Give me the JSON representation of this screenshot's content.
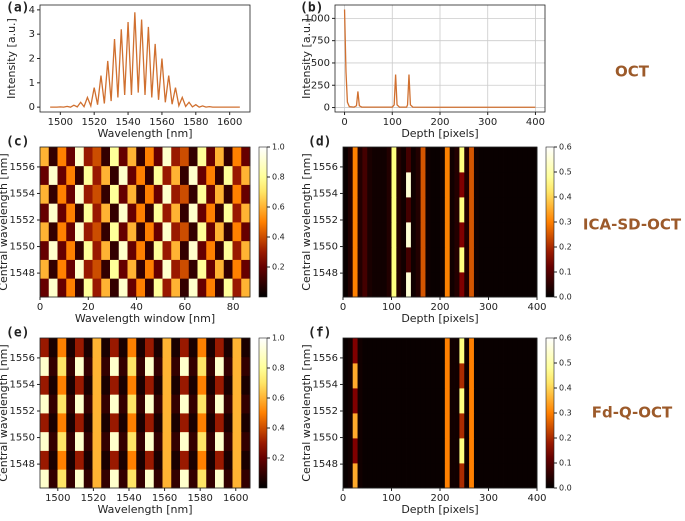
{
  "row_labels": [
    "OCT",
    "ICA-SD-OCT",
    "Fd-Q-OCT"
  ],
  "chart_data": [
    {
      "type": "line",
      "label": "(a)",
      "xlabel": "Wavelength [nm]",
      "ylabel": "Intensity [a.u.]",
      "color": "#d07030",
      "x": [
        1494,
        1496,
        1498,
        1500,
        1502,
        1504,
        1506,
        1508,
        1510,
        1512,
        1514,
        1516,
        1518,
        1520,
        1522,
        1524,
        1526,
        1528,
        1530,
        1532,
        1534,
        1536,
        1538,
        1540,
        1542,
        1544,
        1546,
        1548,
        1550,
        1552,
        1554,
        1556,
        1558,
        1560,
        1562,
        1564,
        1566,
        1568,
        1570,
        1572,
        1574,
        1576,
        1578,
        1580,
        1582,
        1584,
        1586,
        1588,
        1590,
        1592,
        1594,
        1596,
        1598,
        1600,
        1602,
        1604,
        1606
      ],
      "values": [
        0,
        0,
        0,
        0.01,
        0,
        0.03,
        0,
        0.08,
        0.01,
        0.2,
        0.02,
        0.4,
        0.05,
        0.8,
        0.1,
        1.3,
        0.15,
        1.9,
        0.25,
        2.8,
        0.4,
        3.2,
        0.5,
        3.5,
        0.5,
        3.9,
        0.6,
        3.6,
        0.5,
        3.3,
        0.4,
        2.6,
        0.3,
        2.0,
        0.2,
        1.3,
        0.12,
        0.8,
        0.06,
        0.4,
        0.03,
        0.2,
        0.01,
        0.1,
        0,
        0.05,
        0,
        0.02,
        0,
        0,
        0,
        0,
        0,
        0,
        0,
        0,
        0
      ],
      "xlim": [
        1488,
        1612
      ],
      "xticks": [
        1500,
        1520,
        1540,
        1560,
        1580,
        1600
      ],
      "ylim": [
        -0.2,
        4.2
      ],
      "yticks": [
        0,
        1,
        2,
        3,
        4
      ],
      "grid": false
    },
    {
      "type": "line",
      "label": "(b)",
      "xlabel": "Depth [pixels]",
      "ylabel": "Intensity [a.u.]",
      "color": "#d07030",
      "x": [
        0,
        3,
        6,
        10,
        20,
        25,
        28,
        31,
        36,
        100,
        104,
        107,
        110,
        115,
        130,
        132,
        135,
        138,
        143,
        200,
        300,
        400
      ],
      "values": [
        1100,
        400,
        60,
        10,
        5,
        20,
        180,
        20,
        5,
        5,
        30,
        370,
        30,
        5,
        5,
        30,
        370,
        30,
        5,
        3,
        3,
        3
      ],
      "xlim": [
        -20,
        420
      ],
      "xticks": [
        0,
        100,
        200,
        300,
        400
      ],
      "ylim": [
        -50,
        1150
      ],
      "yticks": [
        0,
        250,
        500,
        750,
        1000
      ],
      "grid": true
    },
    {
      "type": "heatmap",
      "label": "(c)",
      "xlabel": "Wavelength window [nm]",
      "ylabel": "Central wavelength [nm]",
      "colormap": "afmhot",
      "xlim": [
        0,
        87
      ],
      "xticks": [
        0,
        20,
        40,
        60,
        80
      ],
      "ylim": [
        1546.2,
        1557.5
      ],
      "yticks": [
        1548,
        1550,
        1552,
        1554,
        1556
      ],
      "clim": [
        0,
        1
      ],
      "cticks": [
        0.2,
        0.4,
        0.6,
        0.8,
        {
          "value": 1,
          "label": "1.0"
        }
      ],
      "z": [
        [
          0.2,
          0.9,
          0.2,
          0.5,
          0.1,
          0.8,
          0.3,
          0.6,
          0.1,
          0.9,
          0.2,
          0.5,
          0.1,
          0.8,
          0.3,
          0.6,
          0.1,
          0.9,
          0.2,
          0.5,
          0.1,
          0.8,
          0.3,
          0.6
        ],
        [
          0.6,
          0.1,
          0.5,
          0.2,
          0.9,
          0.3,
          0.4,
          0.1,
          0.8,
          0.2,
          0.6,
          0.1,
          0.5,
          0.2,
          0.9,
          0.3,
          0.4,
          0.1,
          0.8,
          0.2,
          0.6,
          0.1,
          0.5,
          0.2
        ],
        [
          0.2,
          0.9,
          0.2,
          0.5,
          0.1,
          0.8,
          0.3,
          0.6,
          0.1,
          0.9,
          0.2,
          0.5,
          0.1,
          0.8,
          0.3,
          0.6,
          0.1,
          0.9,
          0.2,
          0.5,
          0.1,
          0.8,
          0.3,
          0.6
        ],
        [
          0.6,
          0.1,
          0.5,
          0.2,
          0.9,
          0.3,
          0.4,
          0.1,
          0.8,
          0.2,
          0.6,
          0.1,
          0.5,
          0.2,
          0.9,
          0.3,
          0.4,
          0.1,
          0.8,
          0.2,
          0.6,
          0.1,
          0.5,
          0.2
        ],
        [
          0.2,
          0.9,
          0.2,
          0.5,
          0.1,
          0.8,
          0.3,
          0.6,
          0.1,
          0.9,
          0.2,
          0.5,
          0.1,
          0.8,
          0.3,
          0.6,
          0.1,
          0.9,
          0.2,
          0.5,
          0.1,
          0.8,
          0.3,
          0.6
        ],
        [
          0.6,
          0.1,
          0.5,
          0.2,
          0.9,
          0.3,
          0.4,
          0.1,
          0.8,
          0.2,
          0.6,
          0.1,
          0.5,
          0.2,
          0.9,
          0.3,
          0.4,
          0.1,
          0.8,
          0.2,
          0.6,
          0.1,
          0.5,
          0.2
        ],
        [
          0.2,
          0.9,
          0.2,
          0.5,
          0.1,
          0.8,
          0.3,
          0.6,
          0.1,
          0.9,
          0.2,
          0.5,
          0.1,
          0.8,
          0.3,
          0.6,
          0.1,
          0.9,
          0.2,
          0.5,
          0.1,
          0.8,
          0.3,
          0.6
        ],
        [
          0.6,
          0.1,
          0.5,
          0.2,
          0.9,
          0.3,
          0.4,
          0.1,
          0.8,
          0.2,
          0.6,
          0.1,
          0.5,
          0.2,
          0.9,
          0.3,
          0.4,
          0.1,
          0.8,
          0.2,
          0.6,
          0.1,
          0.5,
          0.2
        ]
      ]
    },
    {
      "type": "heatmap",
      "label": "(d)",
      "xlabel": "Depth [pixels]",
      "ylabel": "Central wavelength [nm]",
      "colormap": "afmhot",
      "xlim": [
        0,
        400
      ],
      "xticks": [
        0,
        100,
        200,
        300,
        400
      ],
      "ylim": [
        1546.2,
        1557.5
      ],
      "yticks": [
        1548,
        1550,
        1552,
        1554,
        1556
      ],
      "clim": [
        0,
        0.6
      ],
      "cticks": [
        {
          "value": 0,
          "label": "0.0"
        },
        0.1,
        0.2,
        0.3,
        0.4,
        0.5,
        0.6
      ],
      "z": [
        [
          0.01,
          0.04,
          0.3,
          0.04,
          0.08,
          0.03,
          0.02,
          0.02,
          0.02,
          0.04,
          0.45,
          0.04,
          0.02,
          0.55,
          0.02,
          0.04,
          0.25,
          0.02,
          0.01,
          0.01,
          0.02,
          0.3,
          0.02,
          0.04,
          0.15,
          0.04,
          0.25,
          0.02,
          0.01,
          0.01,
          0.01,
          0.01,
          0.01,
          0.01,
          0.01,
          0.01,
          0.01,
          0.01,
          0.01,
          0.01
        ],
        [
          0.01,
          0.04,
          0.3,
          0.04,
          0.08,
          0.03,
          0.02,
          0.02,
          0.02,
          0.04,
          0.45,
          0.04,
          0.02,
          0.08,
          0.02,
          0.04,
          0.25,
          0.02,
          0.01,
          0.01,
          0.02,
          0.3,
          0.02,
          0.04,
          0.45,
          0.04,
          0.25,
          0.02,
          0.01,
          0.01,
          0.01,
          0.01,
          0.01,
          0.01,
          0.01,
          0.01,
          0.01,
          0.01,
          0.01,
          0.01
        ],
        [
          0.01,
          0.04,
          0.3,
          0.04,
          0.08,
          0.03,
          0.02,
          0.02,
          0.02,
          0.04,
          0.45,
          0.04,
          0.02,
          0.55,
          0.02,
          0.04,
          0.25,
          0.02,
          0.01,
          0.01,
          0.02,
          0.3,
          0.02,
          0.04,
          0.15,
          0.04,
          0.25,
          0.02,
          0.01,
          0.01,
          0.01,
          0.01,
          0.01,
          0.01,
          0.01,
          0.01,
          0.01,
          0.01,
          0.01,
          0.01
        ],
        [
          0.01,
          0.04,
          0.3,
          0.04,
          0.08,
          0.03,
          0.02,
          0.02,
          0.02,
          0.04,
          0.45,
          0.04,
          0.02,
          0.08,
          0.02,
          0.04,
          0.25,
          0.02,
          0.01,
          0.01,
          0.02,
          0.3,
          0.02,
          0.04,
          0.45,
          0.04,
          0.25,
          0.02,
          0.01,
          0.01,
          0.01,
          0.01,
          0.01,
          0.01,
          0.01,
          0.01,
          0.01,
          0.01,
          0.01,
          0.01
        ],
        [
          0.01,
          0.04,
          0.3,
          0.04,
          0.08,
          0.03,
          0.02,
          0.02,
          0.02,
          0.04,
          0.45,
          0.04,
          0.02,
          0.55,
          0.02,
          0.04,
          0.25,
          0.02,
          0.01,
          0.01,
          0.02,
          0.3,
          0.02,
          0.04,
          0.15,
          0.04,
          0.25,
          0.02,
          0.01,
          0.01,
          0.01,
          0.01,
          0.01,
          0.01,
          0.01,
          0.01,
          0.01,
          0.01,
          0.01,
          0.01
        ],
        [
          0.01,
          0.04,
          0.3,
          0.04,
          0.08,
          0.03,
          0.02,
          0.02,
          0.02,
          0.04,
          0.45,
          0.04,
          0.02,
          0.08,
          0.02,
          0.04,
          0.25,
          0.02,
          0.01,
          0.01,
          0.02,
          0.3,
          0.02,
          0.04,
          0.45,
          0.04,
          0.25,
          0.02,
          0.01,
          0.01,
          0.01,
          0.01,
          0.01,
          0.01,
          0.01,
          0.01,
          0.01,
          0.01,
          0.01,
          0.01
        ]
      ]
    },
    {
      "type": "heatmap",
      "label": "(e)",
      "xlabel": "Wavelength [nm]",
      "ylabel": "Central wavelength [nm]",
      "colormap": "afmhot",
      "xlim": [
        1490,
        1608
      ],
      "xticks": [
        1500,
        1520,
        1540,
        1560,
        1580,
        1600
      ],
      "ylim": [
        1546.2,
        1557.5
      ],
      "yticks": [
        1548,
        1550,
        1552,
        1554,
        1556
      ],
      "clim": [
        0,
        1
      ],
      "cticks": [
        0.2,
        0.4,
        0.6,
        0.8,
        {
          "value": 1,
          "label": "1.0"
        }
      ],
      "z": [
        [
          0.9,
          0.1,
          0.7,
          0.1,
          0.9,
          0.1,
          0.6,
          0.1,
          0.9,
          0.1,
          0.7,
          0.1,
          0.9,
          0.1,
          0.6,
          0.1,
          0.9,
          0.1,
          0.7,
          0.1,
          0.9,
          0.1,
          0.6,
          0.1
        ],
        [
          0.3,
          0.05,
          0.5,
          0.05,
          0.3,
          0.05,
          0.6,
          0.05,
          0.3,
          0.05,
          0.5,
          0.05,
          0.3,
          0.05,
          0.6,
          0.05,
          0.3,
          0.05,
          0.5,
          0.05,
          0.3,
          0.05,
          0.6,
          0.05
        ],
        [
          0.9,
          0.1,
          0.7,
          0.1,
          0.9,
          0.1,
          0.6,
          0.1,
          0.9,
          0.1,
          0.7,
          0.1,
          0.9,
          0.1,
          0.6,
          0.1,
          0.9,
          0.1,
          0.7,
          0.1,
          0.9,
          0.1,
          0.6,
          0.1
        ],
        [
          0.3,
          0.05,
          0.5,
          0.05,
          0.3,
          0.05,
          0.6,
          0.05,
          0.3,
          0.05,
          0.5,
          0.05,
          0.3,
          0.05,
          0.6,
          0.05,
          0.3,
          0.05,
          0.5,
          0.05,
          0.3,
          0.05,
          0.6,
          0.05
        ],
        [
          0.9,
          0.1,
          0.7,
          0.1,
          0.9,
          0.1,
          0.6,
          0.1,
          0.9,
          0.1,
          0.7,
          0.1,
          0.9,
          0.1,
          0.6,
          0.1,
          0.9,
          0.1,
          0.7,
          0.1,
          0.9,
          0.1,
          0.6,
          0.1
        ],
        [
          0.3,
          0.05,
          0.5,
          0.05,
          0.3,
          0.05,
          0.6,
          0.05,
          0.3,
          0.05,
          0.5,
          0.05,
          0.3,
          0.05,
          0.6,
          0.05,
          0.3,
          0.05,
          0.5,
          0.05,
          0.3,
          0.05,
          0.6,
          0.05
        ],
        [
          0.9,
          0.1,
          0.7,
          0.1,
          0.9,
          0.1,
          0.6,
          0.1,
          0.9,
          0.1,
          0.7,
          0.1,
          0.9,
          0.1,
          0.6,
          0.1,
          0.9,
          0.1,
          0.7,
          0.1,
          0.9,
          0.1,
          0.6,
          0.1
        ],
        [
          0.3,
          0.05,
          0.5,
          0.05,
          0.3,
          0.05,
          0.6,
          0.05,
          0.3,
          0.05,
          0.5,
          0.05,
          0.3,
          0.05,
          0.6,
          0.05,
          0.3,
          0.05,
          0.5,
          0.05,
          0.3,
          0.05,
          0.6,
          0.05
        ]
      ]
    },
    {
      "type": "heatmap",
      "label": "(f)",
      "xlabel": "Depth [pixels]",
      "ylabel": "Central wavelength [nm]",
      "colormap": "afmhot",
      "xlim": [
        0,
        400
      ],
      "xticks": [
        0,
        100,
        200,
        300,
        400
      ],
      "ylim": [
        1546.2,
        1557.5
      ],
      "yticks": [
        1548,
        1550,
        1552,
        1554,
        1556
      ],
      "clim": [
        0,
        0.6
      ],
      "cticks": [
        {
          "value": 0,
          "label": "0.0"
        },
        0.1,
        0.2,
        0.3,
        0.4,
        0.5,
        0.6
      ],
      "z": [
        [
          0.01,
          0.02,
          0.35,
          0.02,
          0.01,
          0.01,
          0.01,
          0.01,
          0.01,
          0.01,
          0.01,
          0.01,
          0.01,
          0.01,
          0.01,
          0.01,
          0.01,
          0.01,
          0.01,
          0.01,
          0.01,
          0.3,
          0.02,
          0.02,
          0.2,
          0.02,
          0.3,
          0.01,
          0.01,
          0.01,
          0.01,
          0.01,
          0.01,
          0.01,
          0.01,
          0.01,
          0.01,
          0.01,
          0.01,
          0.01
        ],
        [
          0.01,
          0.02,
          0.15,
          0.02,
          0.01,
          0.01,
          0.01,
          0.01,
          0.01,
          0.01,
          0.01,
          0.01,
          0.01,
          0.01,
          0.01,
          0.01,
          0.01,
          0.01,
          0.01,
          0.01,
          0.01,
          0.3,
          0.02,
          0.02,
          0.45,
          0.02,
          0.3,
          0.01,
          0.01,
          0.01,
          0.01,
          0.01,
          0.01,
          0.01,
          0.01,
          0.01,
          0.01,
          0.01,
          0.01,
          0.01
        ],
        [
          0.01,
          0.02,
          0.35,
          0.02,
          0.01,
          0.01,
          0.01,
          0.01,
          0.01,
          0.01,
          0.01,
          0.01,
          0.01,
          0.01,
          0.01,
          0.01,
          0.01,
          0.01,
          0.01,
          0.01,
          0.01,
          0.3,
          0.02,
          0.02,
          0.2,
          0.02,
          0.3,
          0.01,
          0.01,
          0.01,
          0.01,
          0.01,
          0.01,
          0.01,
          0.01,
          0.01,
          0.01,
          0.01,
          0.01,
          0.01
        ],
        [
          0.01,
          0.02,
          0.15,
          0.02,
          0.01,
          0.01,
          0.01,
          0.01,
          0.01,
          0.01,
          0.01,
          0.01,
          0.01,
          0.01,
          0.01,
          0.01,
          0.01,
          0.01,
          0.01,
          0.01,
          0.01,
          0.3,
          0.02,
          0.02,
          0.45,
          0.02,
          0.3,
          0.01,
          0.01,
          0.01,
          0.01,
          0.01,
          0.01,
          0.01,
          0.01,
          0.01,
          0.01,
          0.01,
          0.01,
          0.01
        ],
        [
          0.01,
          0.02,
          0.35,
          0.02,
          0.01,
          0.01,
          0.01,
          0.01,
          0.01,
          0.01,
          0.01,
          0.01,
          0.01,
          0.01,
          0.01,
          0.01,
          0.01,
          0.01,
          0.01,
          0.01,
          0.01,
          0.3,
          0.02,
          0.02,
          0.2,
          0.02,
          0.3,
          0.01,
          0.01,
          0.01,
          0.01,
          0.01,
          0.01,
          0.01,
          0.01,
          0.01,
          0.01,
          0.01,
          0.01,
          0.01
        ],
        [
          0.01,
          0.02,
          0.15,
          0.02,
          0.01,
          0.01,
          0.01,
          0.01,
          0.01,
          0.01,
          0.01,
          0.01,
          0.01,
          0.01,
          0.01,
          0.01,
          0.01,
          0.01,
          0.01,
          0.01,
          0.01,
          0.3,
          0.02,
          0.02,
          0.45,
          0.02,
          0.3,
          0.01,
          0.01,
          0.01,
          0.01,
          0.01,
          0.01,
          0.01,
          0.01,
          0.01,
          0.01,
          0.01,
          0.01,
          0.01
        ]
      ]
    }
  ]
}
